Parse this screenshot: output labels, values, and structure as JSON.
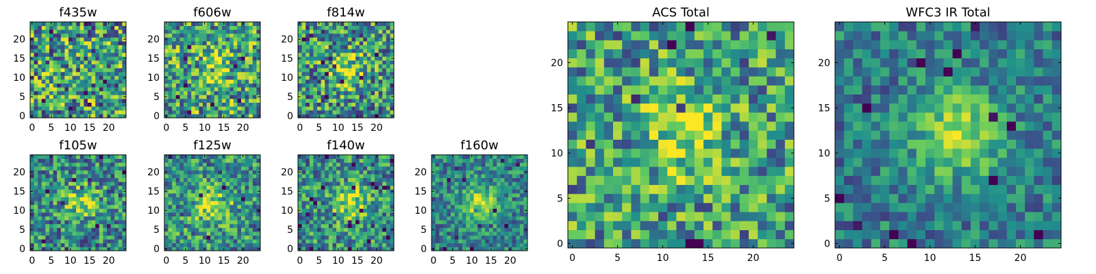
{
  "chart_data": {
    "type": "heatmap",
    "colormap": "viridis",
    "colormap_stops": [
      "#440154",
      "#3b528b",
      "#21918c",
      "#5ec962",
      "#fde725"
    ],
    "axes_spine_color": "#000000",
    "panels": [
      {
        "id": "f435w",
        "title": "f435w",
        "grid_size": 25,
        "xticks": [
          0,
          5,
          10,
          15,
          20
        ],
        "yticks": [
          0,
          5,
          10,
          15,
          20
        ],
        "xlim": [
          -0.5,
          24.5
        ],
        "ylim": [
          -0.5,
          24.5
        ],
        "peak": [
          12,
          12
        ],
        "blob_strength": 0.0,
        "noise_level": 0.55,
        "base": 0.55,
        "seed": 11
      },
      {
        "id": "f606w",
        "title": "f606w",
        "grid_size": 25,
        "xticks": [
          0,
          5,
          10,
          15,
          20
        ],
        "yticks": [
          0,
          5,
          10,
          15,
          20
        ],
        "xlim": [
          -0.5,
          24.5
        ],
        "ylim": [
          -0.5,
          24.5
        ],
        "peak": [
          12,
          12
        ],
        "blob_strength": 0.25,
        "noise_level": 0.5,
        "base": 0.58,
        "seed": 23
      },
      {
        "id": "f814w",
        "title": "f814w",
        "grid_size": 25,
        "xticks": [
          0,
          5,
          10,
          15,
          20
        ],
        "yticks": [
          0,
          5,
          10,
          15,
          20
        ],
        "xlim": [
          -0.5,
          24.5
        ],
        "ylim": [
          -0.5,
          24.5
        ],
        "peak": [
          12,
          12
        ],
        "blob_strength": 0.35,
        "noise_level": 0.5,
        "base": 0.52,
        "seed": 37
      },
      {
        "id": "f105w",
        "title": "f105w",
        "grid_size": 25,
        "xticks": [
          0,
          5,
          10,
          15,
          20
        ],
        "yticks": [
          0,
          5,
          10,
          15,
          20
        ],
        "xlim": [
          -0.5,
          24.5
        ],
        "ylim": [
          -0.5,
          24.5
        ],
        "peak": [
          13,
          12
        ],
        "blob_strength": 0.35,
        "noise_level": 0.42,
        "base": 0.48,
        "seed": 41
      },
      {
        "id": "f125w",
        "title": "f125w",
        "grid_size": 25,
        "xticks": [
          0,
          5,
          10,
          15,
          20
        ],
        "yticks": [
          0,
          5,
          10,
          15,
          20
        ],
        "xlim": [
          -0.5,
          24.5
        ],
        "ylim": [
          -0.5,
          24.5
        ],
        "peak": [
          12,
          11
        ],
        "blob_strength": 0.4,
        "noise_level": 0.4,
        "base": 0.52,
        "seed": 53
      },
      {
        "id": "f140w",
        "title": "f140w",
        "grid_size": 25,
        "xticks": [
          0,
          5,
          10,
          15,
          20
        ],
        "yticks": [
          0,
          5,
          10,
          15,
          20
        ],
        "xlim": [
          -0.5,
          24.5
        ],
        "ylim": [
          -0.5,
          24.5
        ],
        "peak": [
          13,
          12
        ],
        "blob_strength": 0.4,
        "noise_level": 0.4,
        "base": 0.5,
        "seed": 67
      },
      {
        "id": "f160w",
        "title": "f160w",
        "grid_size": 25,
        "xticks": [
          0,
          5,
          10,
          15,
          20
        ],
        "yticks": [
          0,
          5,
          10,
          15,
          20
        ],
        "xlim": [
          -0.5,
          24.5
        ],
        "ylim": [
          -0.5,
          24.5
        ],
        "peak": [
          12,
          12
        ],
        "blob_strength": 0.45,
        "noise_level": 0.32,
        "base": 0.45,
        "seed": 79
      },
      {
        "id": "acs-total",
        "title": "ACS Total",
        "grid_size": 25,
        "xticks": [
          0,
          5,
          10,
          15,
          20
        ],
        "yticks": [
          0,
          5,
          10,
          15,
          20
        ],
        "xlim": [
          -0.5,
          24.5
        ],
        "ylim": [
          -0.5,
          24.5
        ],
        "peak": [
          12,
          12
        ],
        "blob_strength": 0.35,
        "noise_level": 0.45,
        "base": 0.55,
        "seed": 97
      },
      {
        "id": "wfc3-ir-total",
        "title": "WFC3 IR Total",
        "grid_size": 25,
        "xticks": [
          0,
          5,
          10,
          15,
          20
        ],
        "yticks": [
          0,
          5,
          10,
          15,
          20
        ],
        "xlim": [
          -0.5,
          24.5
        ],
        "ylim": [
          -0.5,
          24.5
        ],
        "peak": [
          13,
          12
        ],
        "blob_strength": 0.5,
        "noise_level": 0.28,
        "base": 0.42,
        "seed": 113
      }
    ]
  }
}
